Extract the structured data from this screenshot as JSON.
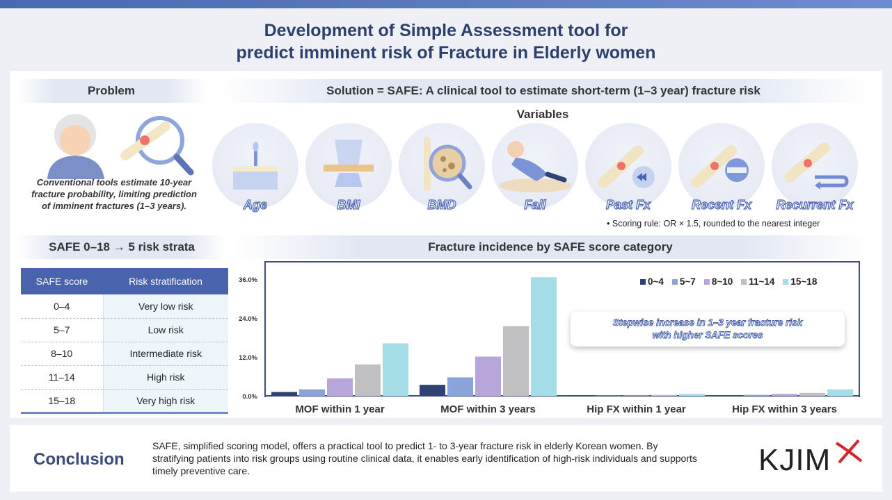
{
  "title_line1": "Development of Simple Assessment tool for",
  "title_line2": "predict imminent risk of Fracture in Elderly women",
  "problem": {
    "header": "Problem",
    "text": "Conventional tools estimate 10-year fracture probability, limiting prediction of imminent fractures (1–3 years)."
  },
  "solution": {
    "header": "Solution = SAFE: A clinical tool to estimate short-term (1–3 year) fracture risk",
    "variables_title": "Variables",
    "variables": [
      "Age",
      "BMI",
      "BMD",
      "Fall",
      "Past Fx",
      "Recent Fx",
      "Recurrent Fx"
    ],
    "scoring_rule": "Scoring rule: OR × 1.5, rounded to the nearest integer"
  },
  "strata": {
    "header": "SAFE 0–18 → 5 risk strata",
    "col_score": "SAFE score",
    "col_risk": "Risk stratification",
    "rows": [
      {
        "score": "0–4",
        "risk": "Very low risk"
      },
      {
        "score": "5–7",
        "risk": "Low risk"
      },
      {
        "score": "8–10",
        "risk": "Intermediate risk"
      },
      {
        "score": "11–14",
        "risk": "High risk"
      },
      {
        "score": "15–18",
        "risk": "Very high risk"
      }
    ]
  },
  "chart_header": "Fracture incidence by SAFE score category",
  "callout": {
    "line1": "Stepwise increase in 1–3 year fracture risk",
    "line2": "with higher SAFE scores"
  },
  "conclusion": {
    "title": "Conclusion",
    "text": "SAFE, simplified scoring model, offers a practical tool to predict 1- to 3-year fracture risk in elderly Korean women. By stratifying patients into risk groups using routine clinical data, it enables early identification of high-risk individuals and supports timely preventive care."
  },
  "logo": "KJIM",
  "chart_data": {
    "type": "bar",
    "categories": [
      "MOF within 1 year",
      "MOF within 3 years",
      "Hip FX within 1 year",
      "Hip FX within 3 years"
    ],
    "ylim": [
      0,
      36
    ],
    "yticks": [
      "0.0%",
      "12.0%",
      "24.0%",
      "36.0%"
    ],
    "legend_position": "top-right",
    "grid": false,
    "series": [
      {
        "name": "0~4",
        "color": "#2f4273",
        "values": [
          1.2,
          3.4,
          0.05,
          0.1
        ]
      },
      {
        "name": "5~7",
        "color": "#8aa3d8",
        "values": [
          2.0,
          5.7,
          0.1,
          0.3
        ]
      },
      {
        "name": "8~10",
        "color": "#b8a6da",
        "values": [
          5.4,
          12.1,
          0.15,
          0.6
        ]
      },
      {
        "name": "11~14",
        "color": "#c0c0c2",
        "values": [
          9.7,
          21.5,
          0.3,
          0.9
        ]
      },
      {
        "name": "15~18",
        "color": "#a4dde6",
        "values": [
          16.2,
          36.6,
          0.6,
          2.0
        ]
      }
    ]
  }
}
